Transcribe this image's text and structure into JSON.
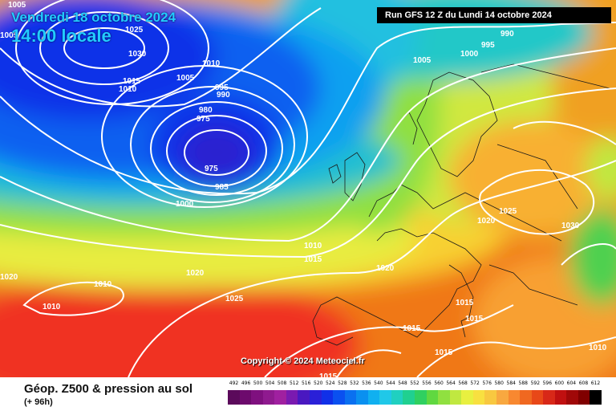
{
  "header": {
    "date": "Vendredi 18 octobre 2024",
    "time": "14:00 locale",
    "run": "Run GFS 12 Z du Lundi 14 octobre 2024"
  },
  "footer": {
    "title": "Géop. Z500 & pression au sol",
    "subtitle": "(+ 96h)",
    "copyright": "Copyright © 2024 Meteociel.fr"
  },
  "isobar_labels": [
    "1005",
    "1025",
    "1030",
    "1010",
    "1015",
    "1010",
    "1005",
    "995",
    "990",
    "980",
    "975",
    "975",
    "985",
    "1000",
    "990",
    "995",
    "1000",
    "1005",
    "1010",
    "1015",
    "1020",
    "1025",
    "1030",
    "1020",
    "1010",
    "1010",
    "1020",
    "1025",
    "1015",
    "1015",
    "1015",
    "1015",
    "1010",
    "1005"
  ],
  "scale": {
    "labels": [
      "492",
      "496",
      "500",
      "504",
      "508",
      "512",
      "516",
      "520",
      "524",
      "528",
      "532",
      "536",
      "540",
      "544",
      "548",
      "552",
      "556",
      "560",
      "564",
      "568",
      "572",
      "576",
      "580",
      "584",
      "588",
      "592",
      "596",
      "600",
      "604",
      "608",
      "612"
    ],
    "colors": [
      "#5b0a5b",
      "#6d0a6d",
      "#7f107f",
      "#8f1a8f",
      "#a020a0",
      "#7a1ab0",
      "#4a18c0",
      "#2a20d8",
      "#1030e8",
      "#0a50f0",
      "#0a70f0",
      "#0a90f0",
      "#10b0f0",
      "#20c8e8",
      "#20d0c0",
      "#20d090",
      "#30d060",
      "#60d840",
      "#90e040",
      "#c0e840",
      "#e8f040",
      "#f8e040",
      "#f8c840",
      "#f8a840",
      "#f88830",
      "#f06820",
      "#e84818",
      "#d82818",
      "#c01010",
      "#a00808",
      "#800000",
      "#000000"
    ]
  }
}
